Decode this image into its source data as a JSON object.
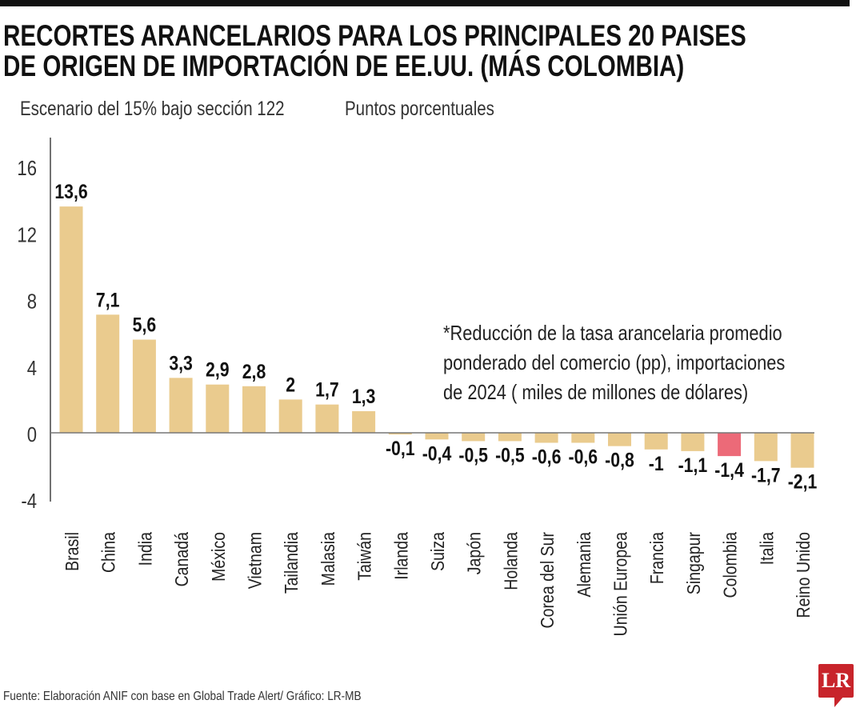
{
  "title_lines": [
    "RECORTES ARANCELARIOS PARA LOS PRINCIPALES 20 PAISES",
    "DE ORIGEN DE IMPORTACIÓN DE EE.UU. (MÁS COLOMBIA)"
  ],
  "subtitle_left": "Escenario del 15% bajo sección 122",
  "subtitle_right": "Puntos porcentuales",
  "note_lines": [
    "*Reducción de la tasa arancelaria promedio",
    "ponderado del comercio (pp), importaciones",
    "de 2024 ( miles de millones de dólares)"
  ],
  "source": "Fuente: Elaboración ANIF con base en Global Trade Alert/ Gráfico: LR-MB",
  "logo_text": "LR",
  "colors": {
    "bar": "#EACB8E",
    "highlight": "#EC6A78",
    "logo": "#C8242B"
  },
  "chart_data": {
    "type": "bar",
    "categories": [
      "Brasil",
      "China",
      "India",
      "Canadá",
      "México",
      "Vietnam",
      "Tailandia",
      "Malasia",
      "Taiwán",
      "Irlanda",
      "Suiza",
      "Japón",
      "Holanda",
      "Corea del Sur",
      "Alemania",
      "Unión Europea",
      "Francia",
      "Singapur",
      "Colombia",
      "Italia",
      "Reino Unido"
    ],
    "values": [
      13.6,
      7.1,
      5.6,
      3.3,
      2.9,
      2.8,
      2,
      1.7,
      1.3,
      -0.1,
      -0.4,
      -0.5,
      -0.5,
      -0.6,
      -0.6,
      -0.8,
      -1,
      -1.1,
      -1.4,
      -1.7,
      -2.1
    ],
    "value_labels": [
      "13,6",
      "7,1",
      "5,6",
      "3,3",
      "2,9",
      "2,8",
      "2",
      "1,7",
      "1,3",
      "-0,1",
      "-0,4",
      "-0,5",
      "-0,5",
      "-0,6",
      "-0,6",
      "-0,8",
      "-1",
      "-1,1",
      "-1,4",
      "-1,7",
      "-2,1"
    ],
    "highlight": "Colombia",
    "yticks": [
      16,
      12,
      8,
      4,
      0,
      -4
    ],
    "ytick_labels": [
      "16",
      "12",
      "8",
      "4",
      "0",
      "-4"
    ],
    "ylim": [
      -4,
      17.5
    ],
    "grid": false,
    "xlabel": "",
    "ylabel": ""
  }
}
